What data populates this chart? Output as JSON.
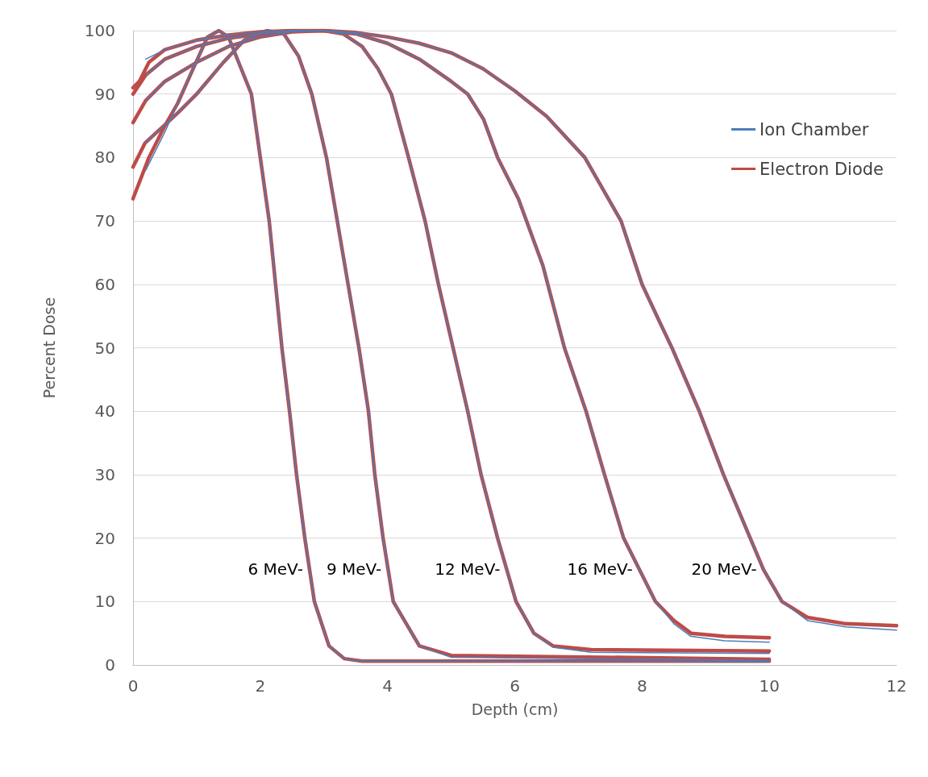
{
  "chart_data": {
    "type": "line",
    "xlabel": "Depth (cm)",
    "ylabel": "Percent Dose",
    "xlim": [
      0,
      12
    ],
    "xticks": [
      0,
      2,
      4,
      6,
      8,
      10,
      12
    ],
    "ylim": [
      0,
      100
    ],
    "yticks": [
      0,
      10,
      20,
      30,
      40,
      50,
      60,
      70,
      80,
      90,
      100
    ],
    "grid": "y",
    "legend": "right",
    "marker": "none",
    "line_style": "solid",
    "series": [
      {
        "name": "Ion Chamber",
        "color": "#4a7ebb",
        "x": [
          0.2,
          0.5,
          0.7,
          0.9,
          1.17,
          1.35,
          1.5,
          1.7,
          1.86,
          2.0,
          2.14,
          2.24,
          2.34,
          2.46,
          2.57,
          2.7,
          2.85,
          3.08,
          3.32,
          3.6,
          10
        ],
        "values": [
          78,
          84,
          88.5,
          93,
          99,
          100,
          99,
          94,
          90,
          80,
          70,
          60,
          50,
          40,
          30,
          20,
          10,
          3,
          1,
          0.6,
          0.5
        ]
      },
      {
        "name": "Electron Diode",
        "color": "#be4b48",
        "x": [
          0,
          0.25,
          0.5,
          0.7,
          0.9,
          1.17,
          1.35,
          1.5,
          1.7,
          1.86,
          2.0,
          2.14,
          2.24,
          2.34,
          2.46,
          2.57,
          2.7,
          2.85,
          3.08,
          3.32,
          3.6,
          10
        ],
        "values": [
          73.5,
          80,
          85,
          88.5,
          93,
          99,
          100,
          99,
          94,
          90,
          80,
          70,
          60,
          50,
          40,
          30,
          20,
          10,
          3,
          1,
          0.6,
          0.6
        ]
      },
      {
        "color": "#4a7ebb",
        "x": [
          0.2,
          0.7,
          1.0,
          1.42,
          1.75,
          2.1,
          2.37,
          2.6,
          2.81,
          3.04,
          3.21,
          3.38,
          3.55,
          3.7,
          3.8,
          3.93,
          4.09,
          4.5,
          5.0,
          10
        ],
        "values": [
          82.3,
          87,
          90,
          95,
          98.5,
          100,
          99.5,
          96,
          90,
          80,
          70,
          60,
          50,
          40,
          30,
          20,
          10,
          3,
          1.2,
          0.7
        ]
      },
      {
        "color": "#be4b48",
        "x": [
          0,
          0.19,
          0.7,
          1.0,
          1.42,
          1.75,
          2.1,
          2.37,
          2.6,
          2.81,
          3.04,
          3.21,
          3.38,
          3.55,
          3.7,
          3.8,
          3.93,
          4.09,
          4.5,
          5.0,
          10
        ],
        "values": [
          78.5,
          82.3,
          87,
          90,
          95,
          98.5,
          100,
          99.5,
          96,
          90,
          80,
          70,
          60,
          50,
          40,
          30,
          20,
          10,
          3,
          1.5,
          0.9
        ]
      },
      {
        "color": "#4a7ebb",
        "x": [
          0.2,
          0.5,
          1,
          1.5,
          2,
          2.5,
          3,
          3.3,
          3.6,
          3.85,
          4.06,
          4.33,
          4.59,
          4.8,
          5.03,
          5.26,
          5.47,
          5.73,
          6.02,
          6.3,
          6.6,
          7.2,
          10
        ],
        "values": [
          89,
          92,
          95,
          97.5,
          99,
          99.8,
          100,
          99.5,
          97.5,
          94,
          90,
          80,
          70,
          60,
          50,
          40,
          30,
          20,
          10,
          5,
          2.8,
          2,
          1.8
        ]
      },
      {
        "color": "#be4b48",
        "x": [
          0,
          0.2,
          0.5,
          1,
          1.5,
          2,
          2.5,
          3,
          3.3,
          3.6,
          3.85,
          4.06,
          4.33,
          4.59,
          4.8,
          5.03,
          5.26,
          5.47,
          5.73,
          6.02,
          6.3,
          6.6,
          7.2,
          10
        ],
        "values": [
          85.5,
          89,
          92,
          95,
          97.5,
          99,
          99.8,
          100,
          99.5,
          97.5,
          94,
          90,
          80,
          70,
          60,
          50,
          40,
          30,
          20,
          10,
          5,
          3,
          2.4,
          2.2
        ]
      },
      {
        "color": "#4a7ebb",
        "x": [
          0.2,
          0.5,
          1,
          1.5,
          2,
          2.5,
          3,
          3.5,
          4,
          4.5,
          5,
          5.26,
          5.51,
          5.73,
          6.06,
          6.44,
          6.78,
          7.12,
          7.41,
          7.71,
          8.21,
          8.5,
          8.77,
          9.3,
          10
        ],
        "values": [
          93,
          95.5,
          97.5,
          98.8,
          99.5,
          100,
          100,
          99.5,
          98,
          95.5,
          92,
          90,
          86,
          80,
          73.4,
          63,
          50,
          40,
          30,
          20,
          10,
          6.5,
          4.5,
          3.8,
          3.6
        ]
      },
      {
        "color": "#be4b48",
        "x": [
          0,
          0.2,
          0.5,
          1,
          1.5,
          2,
          2.5,
          3,
          3.5,
          4,
          4.5,
          5,
          5.26,
          5.51,
          5.73,
          6.06,
          6.44,
          6.78,
          7.12,
          7.41,
          7.71,
          8.21,
          8.5,
          8.77,
          9.3,
          10
        ],
        "values": [
          90,
          93,
          95.5,
          97.5,
          98.8,
          99.5,
          100,
          100,
          99.5,
          98,
          95.5,
          92,
          90,
          86,
          80,
          73.4,
          63,
          50,
          40,
          30,
          20,
          10,
          7,
          5,
          4.5,
          4.3
        ]
      },
      {
        "color": "#4a7ebb",
        "x": [
          0.2,
          0.5,
          1,
          1.5,
          2,
          2.5,
          3,
          3.5,
          4,
          4.5,
          5,
          5.5,
          6,
          6.5,
          7.1,
          7.67,
          8.0,
          8.28,
          8.47,
          8.9,
          9.28,
          9.7,
          9.91,
          10.2,
          10.6,
          11.2,
          12
        ],
        "values": [
          95.5,
          97,
          98.5,
          99.3,
          99.8,
          100,
          100,
          99.7,
          99,
          98,
          96.5,
          94,
          90.5,
          86.5,
          80,
          70,
          60,
          54,
          50,
          40,
          30,
          20,
          15,
          10,
          7,
          6,
          5.5
        ]
      },
      {
        "color": "#be4b48",
        "x": [
          0,
          0.1,
          0.25,
          0.5,
          1,
          1.5,
          2,
          2.5,
          3,
          3.5,
          4,
          4.5,
          5,
          5.5,
          6,
          6.5,
          7.1,
          7.67,
          8.0,
          8.28,
          8.47,
          8.9,
          9.28,
          9.7,
          9.91,
          10.2,
          10.6,
          11.2,
          12
        ],
        "values": [
          91,
          92,
          95,
          97,
          98.5,
          99.3,
          99.8,
          100,
          100,
          99.7,
          99,
          98,
          96.5,
          94,
          90.5,
          86.5,
          80,
          70,
          60,
          54,
          50,
          40,
          30,
          20,
          15,
          10,
          7.5,
          6.5,
          6.2
        ]
      }
    ],
    "annotations": [
      "6 MeV-",
      "9 MeV-",
      "12 MeV-",
      "16 MeV-",
      "20 MeV-"
    ]
  }
}
